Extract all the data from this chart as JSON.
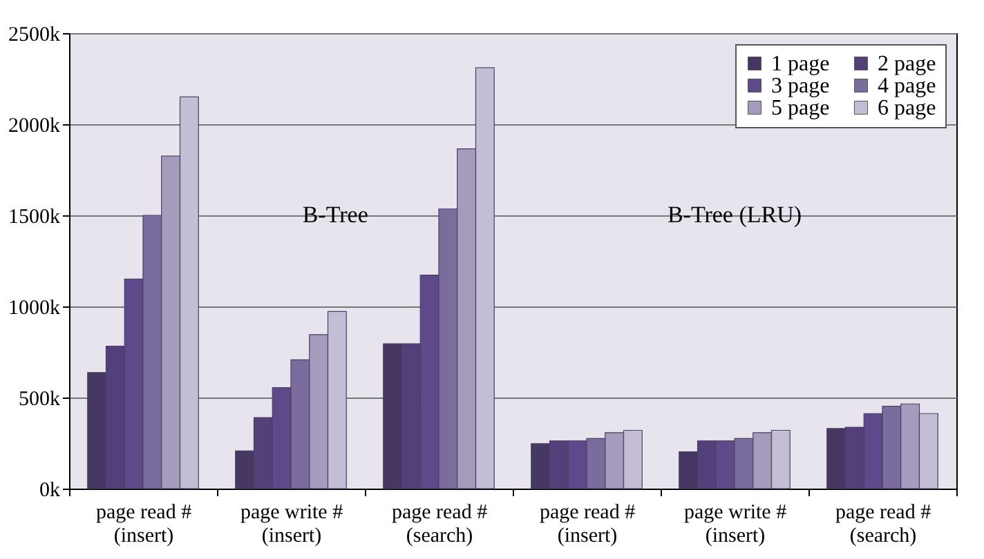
{
  "chart_data": {
    "type": "bar",
    "categories": [
      "page read #\n(insert)",
      "page write #\n(insert)",
      "page read #\n(search)",
      "page read #\n(insert)",
      "page write #\n(insert)",
      "page read #\n(search)"
    ],
    "series": [
      {
        "name": "1 page",
        "color": "#463862",
        "values": [
          637,
          207,
          795,
          247,
          202,
          330
        ]
      },
      {
        "name": "2 page",
        "color": "#53407a",
        "values": [
          782,
          390,
          795,
          262,
          262,
          337
        ]
      },
      {
        "name": "3 page",
        "color": "#5e4a8a",
        "values": [
          1150,
          555,
          1172,
          262,
          262,
          412
        ]
      },
      {
        "name": "4 page",
        "color": "#7b6c9e",
        "values": [
          1500,
          707,
          1535,
          275,
          275,
          452
        ]
      },
      {
        "name": "5 page",
        "color": "#a49bbd",
        "values": [
          1825,
          845,
          1865,
          307,
          307,
          465
        ]
      },
      {
        "name": "6 page",
        "color": "#c4bdd6",
        "values": [
          2150,
          972,
          2310,
          320,
          320,
          412
        ]
      }
    ],
    "ylim": [
      0,
      2500
    ],
    "yticks": [
      {
        "value": 0,
        "label": "0k"
      },
      {
        "value": 500,
        "label": "500k"
      },
      {
        "value": 1000,
        "label": "1000k"
      },
      {
        "value": 1500,
        "label": "1500k"
      },
      {
        "value": 2000,
        "label": "2000k"
      },
      {
        "value": 2500,
        "label": "2500k"
      }
    ],
    "grid": "y",
    "legend": "top right",
    "annotations": [
      "B-Tree",
      "B-Tree (LRU)"
    ]
  }
}
